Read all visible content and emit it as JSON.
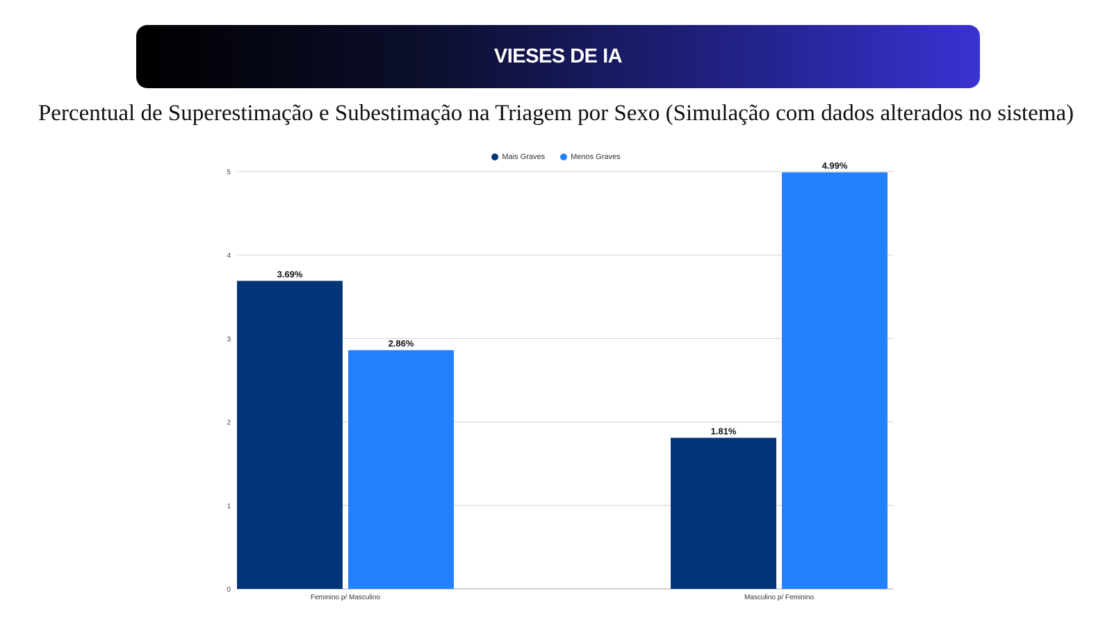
{
  "slide": {
    "banner_title": "VIESES DE IA",
    "subtitle": "Percentual de Superestimação e Subestimação na Triagem por Sexo (Simulação com dados alterados no sistema)"
  },
  "chart_data": {
    "type": "bar",
    "categories": [
      "Feminino p/ Masculino",
      "Masculino p/ Feminino"
    ],
    "series": [
      {
        "name": "Mais Graves",
        "color": "#023478",
        "values": [
          3.69,
          1.81
        ],
        "labels": [
          "3.69%",
          "1.81%"
        ]
      },
      {
        "name": "Menos Graves",
        "color": "#2380ff",
        "values": [
          2.86,
          4.99
        ],
        "labels": [
          "2.86%",
          "4.99%"
        ]
      }
    ],
    "yticks": [
      "0",
      "1",
      "2",
      "3",
      "4",
      "5"
    ],
    "ylim": [
      0,
      5
    ],
    "grid": true,
    "legend": "top-center"
  }
}
